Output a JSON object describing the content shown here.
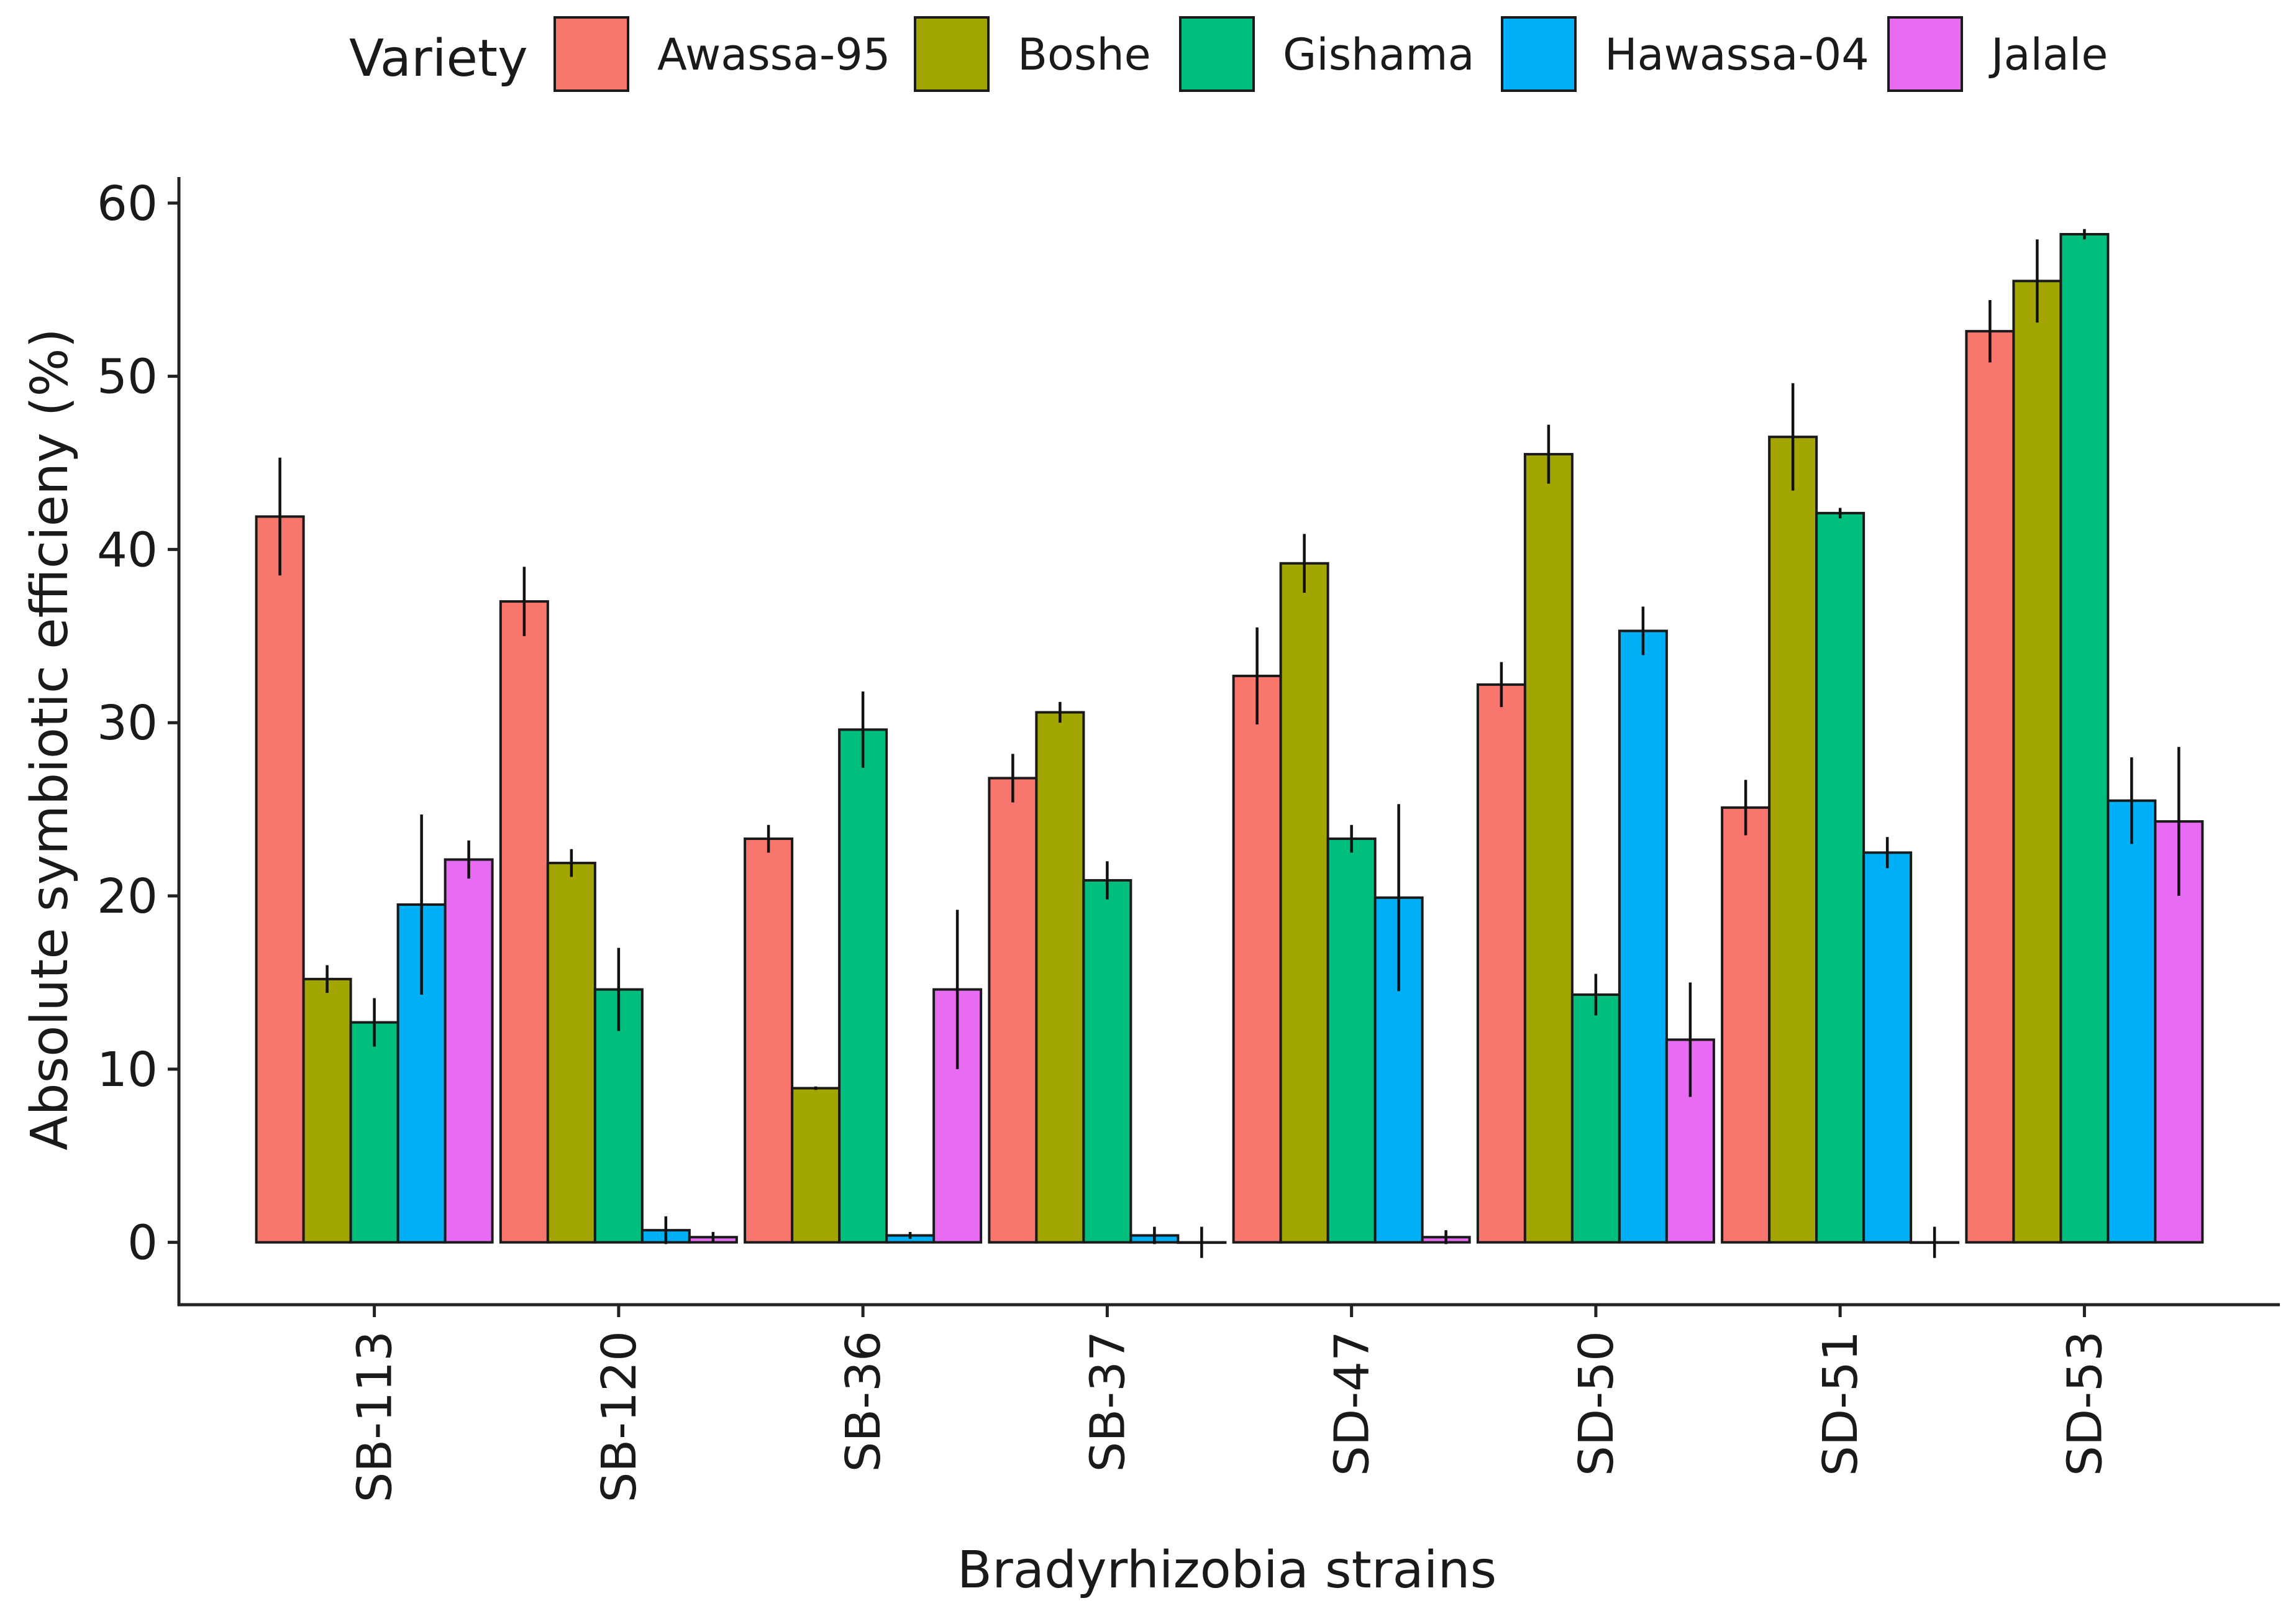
{
  "chart_data": {
    "type": "bar",
    "title": "",
    "xlabel": "Bradyrhizobia strains",
    "ylabel": "Absolute symbiotic efficieny (%)",
    "ylim": [
      -3.6,
      61.5
    ],
    "yticks": [
      0,
      10,
      20,
      30,
      40,
      50,
      60
    ],
    "grid": false,
    "legend": {
      "title": "Variety",
      "position": "top"
    },
    "categories": [
      "SB-113",
      "SB-120",
      "SB-36",
      "SB-37",
      "SD-47",
      "SD-50",
      "SD-51",
      "SD-53"
    ],
    "series": [
      {
        "name": "Awassa-95",
        "color": "#F8766D",
        "values": [
          41.9,
          37.0,
          23.3,
          26.8,
          32.7,
          32.2,
          25.1,
          52.6
        ],
        "errors": [
          3.4,
          2.0,
          0.8,
          1.4,
          2.8,
          1.3,
          1.6,
          1.8
        ]
      },
      {
        "name": "Boshe",
        "color": "#A3A500",
        "values": [
          15.2,
          21.9,
          8.9,
          30.6,
          39.2,
          45.5,
          46.5,
          55.5
        ],
        "errors": [
          0.8,
          0.8,
          0.1,
          0.6,
          1.7,
          1.7,
          3.1,
          2.4
        ]
      },
      {
        "name": "Gishama",
        "color": "#00BF7D",
        "values": [
          12.7,
          14.6,
          29.6,
          20.9,
          23.3,
          14.3,
          42.1,
          58.2
        ],
        "errors": [
          1.4,
          2.4,
          2.2,
          1.1,
          0.8,
          1.2,
          0.3,
          0.3
        ]
      },
      {
        "name": "Hawassa-04",
        "color": "#00B0F6",
        "values": [
          19.5,
          0.7,
          0.4,
          0.4,
          19.9,
          35.3,
          22.5,
          25.5
        ],
        "errors": [
          5.2,
          0.8,
          0.2,
          0.5,
          5.4,
          1.4,
          0.9,
          2.5
        ]
      },
      {
        "name": "Jalale",
        "color": "#E76BF3",
        "values": [
          22.1,
          0.3,
          14.6,
          0.0,
          0.3,
          11.7,
          0.0,
          24.3
        ],
        "errors": [
          1.1,
          0.3,
          4.6,
          0.9,
          0.4,
          3.3,
          0.9,
          4.3
        ]
      }
    ]
  }
}
